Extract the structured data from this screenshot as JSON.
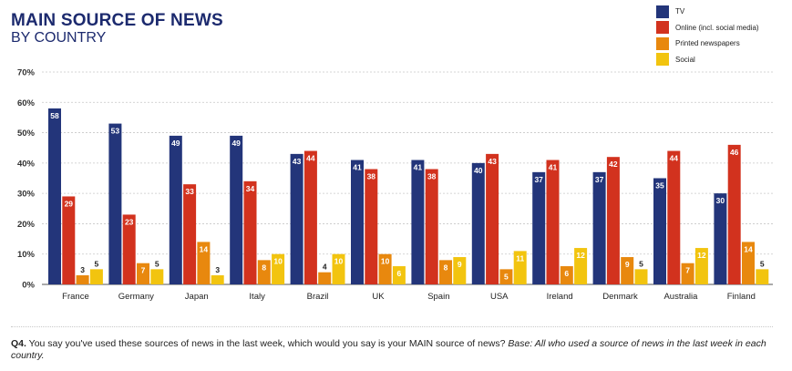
{
  "header": {
    "title": "MAIN SOURCE OF NEWS",
    "subtitle": "BY COUNTRY"
  },
  "colors": {
    "tv": "#23357a",
    "online": "#d2321e",
    "printed": "#e8880e",
    "social": "#f2c40f"
  },
  "chart_data": {
    "type": "bar",
    "title": "MAIN SOURCE OF NEWS BY COUNTRY",
    "xlabel": "",
    "ylabel": "",
    "ylim": [
      0,
      70
    ],
    "yticks": [
      "0%",
      "10%",
      "20%",
      "30%",
      "40%",
      "50%",
      "60%",
      "70%"
    ],
    "grid": true,
    "legend_position": "top-right",
    "categories": [
      "France",
      "Germany",
      "Japan",
      "Italy",
      "Brazil",
      "UK",
      "Spain",
      "USA",
      "Ireland",
      "Denmark",
      "Australia",
      "Finland"
    ],
    "series": [
      {
        "name": "TV",
        "color": "#23357a",
        "values": [
          58,
          53,
          49,
          49,
          43,
          41,
          41,
          40,
          37,
          37,
          35,
          30
        ]
      },
      {
        "name": "Online (incl. social media)",
        "color": "#d2321e",
        "values": [
          29,
          23,
          33,
          34,
          44,
          38,
          38,
          43,
          41,
          42,
          44,
          46
        ]
      },
      {
        "name": "Printed newspapers",
        "color": "#e8880e",
        "values": [
          3,
          7,
          14,
          8,
          4,
          10,
          8,
          5,
          6,
          9,
          7,
          14
        ]
      },
      {
        "name": "Social",
        "color": "#f2c40f",
        "values": [
          5,
          5,
          3,
          10,
          10,
          6,
          9,
          11,
          12,
          5,
          12,
          5
        ]
      }
    ]
  },
  "footer": {
    "question_label": "Q4.",
    "question_text": " You say you've used these sources of news in the last week, which would you say is your MAIN source of news? ",
    "base_text": "Base: All who used a source of news in the last week in each country."
  }
}
